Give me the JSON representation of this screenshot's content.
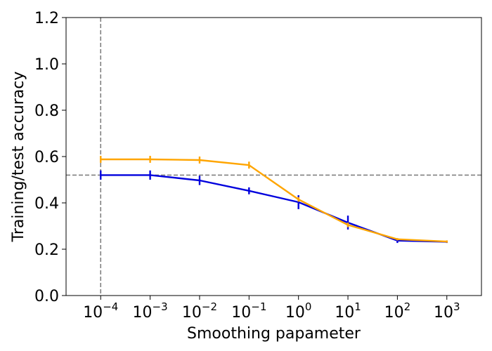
{
  "chart_data": {
    "type": "line",
    "xlabel": "Smoothing papameter",
    "ylabel": "Training/test accuracy",
    "xscale": "log",
    "x": [
      0.0001,
      0.001,
      0.01,
      0.1,
      1,
      10,
      100,
      1000
    ],
    "x_tick_labels": [
      {
        "base": "10",
        "exp": "−4"
      },
      {
        "base": "10",
        "exp": "−3"
      },
      {
        "base": "10",
        "exp": "−2"
      },
      {
        "base": "10",
        "exp": "−1"
      },
      {
        "base": "10",
        "exp": "0"
      },
      {
        "base": "10",
        "exp": "1"
      },
      {
        "base": "10",
        "exp": "2"
      },
      {
        "base": "10",
        "exp": "3"
      }
    ],
    "ylim": [
      0.0,
      1.2
    ],
    "y_ticks": [
      "0.0",
      "0.2",
      "0.4",
      "0.6",
      "0.8",
      "1.0",
      "1.2"
    ],
    "grid": false,
    "series": [
      {
        "color": "#0000dd",
        "values": [
          0.52,
          0.52,
          0.497,
          0.452,
          0.403,
          0.315,
          0.237,
          0.232
        ],
        "errors": [
          0.02,
          0.02,
          0.02,
          0.015,
          0.03,
          0.03,
          0.01,
          0.005
        ]
      },
      {
        "color": "#ffa500",
        "values": [
          0.588,
          0.588,
          0.585,
          0.563,
          0.415,
          0.305,
          0.243,
          0.233
        ],
        "errors": [
          0.015,
          0.015,
          0.015,
          0.015,
          0.01,
          0.01,
          0.005,
          0.005
        ]
      }
    ],
    "reference_lines": [
      {
        "orientation": "horizontal",
        "value": 0.52,
        "style": "dashed",
        "color": "#808080"
      },
      {
        "orientation": "vertical",
        "value": 0.0001,
        "style": "dashed",
        "color": "#808080"
      }
    ]
  }
}
